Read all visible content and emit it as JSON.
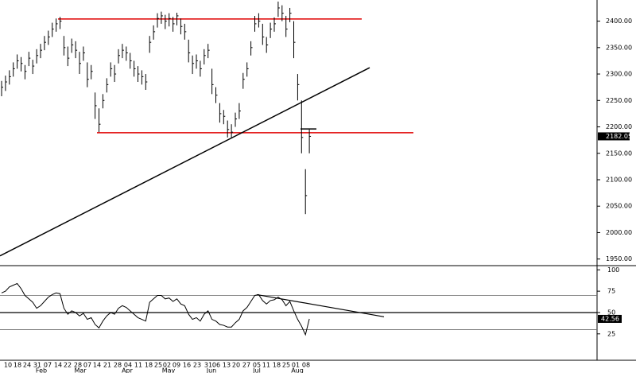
{
  "chart_data": {
    "type": "ohlc",
    "color": "#000000",
    "high": [
      2287,
      2297,
      2307,
      2322,
      2337,
      2332,
      2317,
      2342,
      2327,
      2347,
      2357,
      2372,
      2382,
      2397,
      2405,
      2408,
      2372,
      2352,
      2367,
      2362,
      2342,
      2352,
      2322,
      2317,
      2265,
      2235,
      2262,
      2292,
      2322,
      2317,
      2347,
      2357,
      2352,
      2340,
      2325,
      2315,
      2307,
      2300,
      2372,
      2392,
      2415,
      2418,
      2412,
      2415,
      2408,
      2416,
      2405,
      2395,
      2365,
      2335,
      2337,
      2325,
      2347,
      2357,
      2310,
      2275,
      2245,
      2232,
      2212,
      2205,
      2227,
      2245,
      2302,
      2322,
      2362,
      2410,
      2415,
      2395,
      2370,
      2397,
      2407,
      2437,
      2430,
      2410,
      2425,
      2400,
      2300,
      2250,
      2120,
      2195
    ],
    "low": [
      2258,
      2268,
      2280,
      2295,
      2310,
      2305,
      2290,
      2315,
      2300,
      2320,
      2330,
      2345,
      2355,
      2370,
      2380,
      2385,
      2335,
      2315,
      2340,
      2330,
      2300,
      2325,
      2275,
      2290,
      2215,
      2190,
      2235,
      2265,
      2295,
      2285,
      2320,
      2330,
      2325,
      2310,
      2295,
      2285,
      2280,
      2270,
      2340,
      2365,
      2388,
      2395,
      2385,
      2390,
      2380,
      2392,
      2375,
      2365,
      2322,
      2300,
      2310,
      2295,
      2318,
      2330,
      2262,
      2245,
      2208,
      2205,
      2180,
      2180,
      2200,
      2215,
      2272,
      2295,
      2335,
      2380,
      2388,
      2355,
      2340,
      2368,
      2380,
      2408,
      2400,
      2370,
      2398,
      2330,
      2250,
      2150,
      2035,
      2150
    ],
    "close": [
      2275,
      2285,
      2295,
      2310,
      2325,
      2320,
      2305,
      2330,
      2315,
      2335,
      2345,
      2360,
      2370,
      2385,
      2395,
      2400,
      2350,
      2330,
      2355,
      2345,
      2320,
      2340,
      2290,
      2305,
      2240,
      2205,
      2250,
      2280,
      2310,
      2300,
      2335,
      2345,
      2340,
      2325,
      2310,
      2300,
      2295,
      2285,
      2360,
      2380,
      2405,
      2410,
      2400,
      2405,
      2395,
      2410,
      2390,
      2380,
      2340,
      2320,
      2325,
      2310,
      2335,
      2345,
      2280,
      2260,
      2225,
      2220,
      2195,
      2190,
      2215,
      2230,
      2290,
      2310,
      2350,
      2395,
      2400,
      2370,
      2355,
      2385,
      2395,
      2425,
      2415,
      2385,
      2415,
      2360,
      2280,
      2180,
      2070,
      2182.05
    ],
    "ylim": [
      1939,
      2440
    ],
    "yticks": [
      {
        "value": 1950,
        "label": "1950.00"
      },
      {
        "value": 2000,
        "label": "2000.00"
      },
      {
        "value": 2050,
        "label": "2050.00"
      },
      {
        "value": 2100,
        "label": "2100.00"
      },
      {
        "value": 2150,
        "label": "2150.00"
      },
      {
        "value": 2200,
        "label": "2200.00"
      },
      {
        "value": 2250,
        "label": "2250.00"
      },
      {
        "value": 2300,
        "label": "2300.00"
      },
      {
        "value": 2350,
        "label": "2350.00"
      },
      {
        "value": 2400,
        "label": "2400.00"
      }
    ],
    "x_tick_labels": [
      "10",
      "18",
      "24",
      "31",
      "07",
      "14",
      "22",
      "28",
      "07",
      "14",
      "21",
      "28",
      "04",
      "11",
      "18",
      "25",
      "02",
      "09",
      "16",
      "23",
      "31",
      "06",
      "13",
      "20",
      "27",
      "05",
      "11",
      "18",
      "25",
      "01",
      "08"
    ],
    "months": [
      "Feb",
      "Mar",
      "Apr",
      "May",
      "Jun",
      "Jul",
      "Aug"
    ],
    "annotations": [
      {
        "kind": "hline",
        "value": 2404,
        "color": "#e00000"
      },
      {
        "kind": "hline",
        "value": 2189,
        "color": "#e00000"
      },
      {
        "kind": "trend",
        "values": [
          1956,
          2312
        ],
        "color": "#000000"
      },
      {
        "kind": "hline",
        "value": 2196,
        "color": "#000000"
      }
    ],
    "indicator": {
      "type": "line",
      "color": "#000000",
      "values": [
        73,
        75,
        80,
        82,
        84,
        78,
        70,
        66,
        62,
        55,
        58,
        63,
        68,
        71,
        73,
        72,
        55,
        48,
        52,
        50,
        46,
        49,
        42,
        44,
        36,
        32,
        40,
        46,
        50,
        48,
        55,
        58,
        56,
        52,
        48,
        44,
        42,
        40,
        62,
        66,
        70,
        70,
        66,
        67,
        63,
        66,
        60,
        58,
        48,
        42,
        44,
        40,
        48,
        52,
        42,
        40,
        36,
        35,
        33,
        33,
        38,
        42,
        52,
        56,
        63,
        70,
        71,
        64,
        60,
        64,
        65,
        68,
        65,
        58,
        63,
        52,
        42,
        34,
        24,
        42.56
      ],
      "ylim": [
        -5,
        104
      ],
      "yticks": [
        25,
        50,
        75,
        100
      ],
      "hlines": [
        70,
        50,
        30
      ],
      "trend": [
        71,
        45
      ]
    }
  }
}
